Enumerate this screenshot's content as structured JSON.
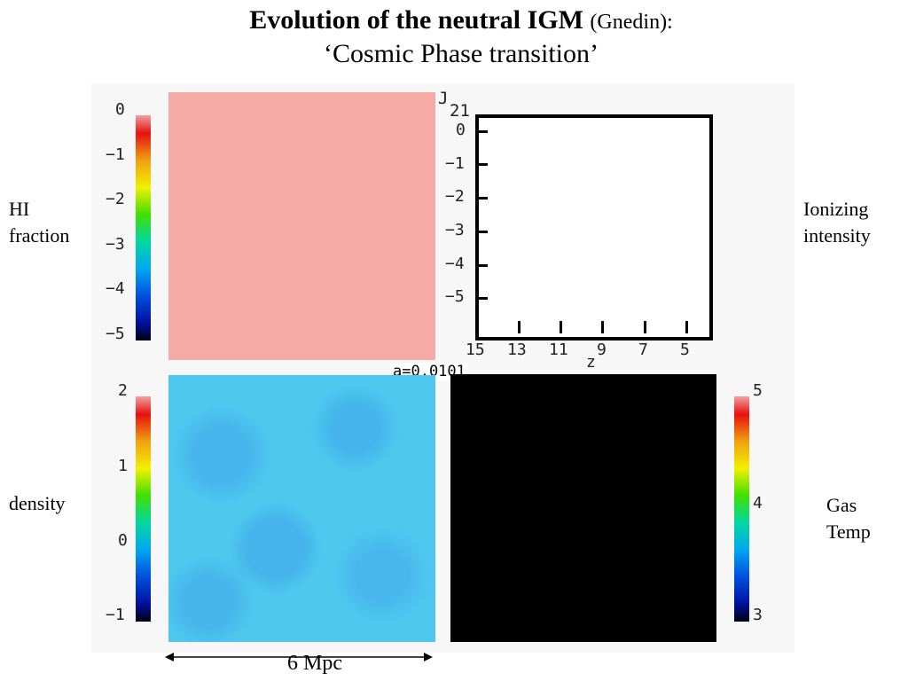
{
  "title": {
    "main": "Evolution of the neutral IGM",
    "sub": "(Gnedin):",
    "line2": "‘Cosmic Phase transition’"
  },
  "labels": {
    "hi": [
      "HI",
      "fraction"
    ],
    "ionizing": [
      "Ionizing",
      "intensity"
    ],
    "density": "density",
    "gas": [
      "Gas",
      "Temp"
    ]
  },
  "colorbars": {
    "hi": [
      "0",
      "−1",
      "−2",
      "−3",
      "−4",
      "−5"
    ],
    "density": [
      "2",
      "1",
      "0",
      "−1"
    ],
    "temp": [
      "5",
      "4",
      "3"
    ]
  },
  "plot": {
    "ylabel": "J",
    "ylabel_sub": "21",
    "yticks": [
      "0",
      "−1",
      "−2",
      "−3",
      "−4",
      "−5"
    ],
    "xticks": [
      "15",
      "13",
      "11",
      "9",
      "7",
      "5"
    ],
    "xlabel": "z"
  },
  "scale_factor": "a=0.0101",
  "scale_bar": "6 Mpc",
  "colors": {
    "hi_map": "#f6aaa6",
    "density_map": "#4fc8f0",
    "temp_map": "#000000"
  }
}
